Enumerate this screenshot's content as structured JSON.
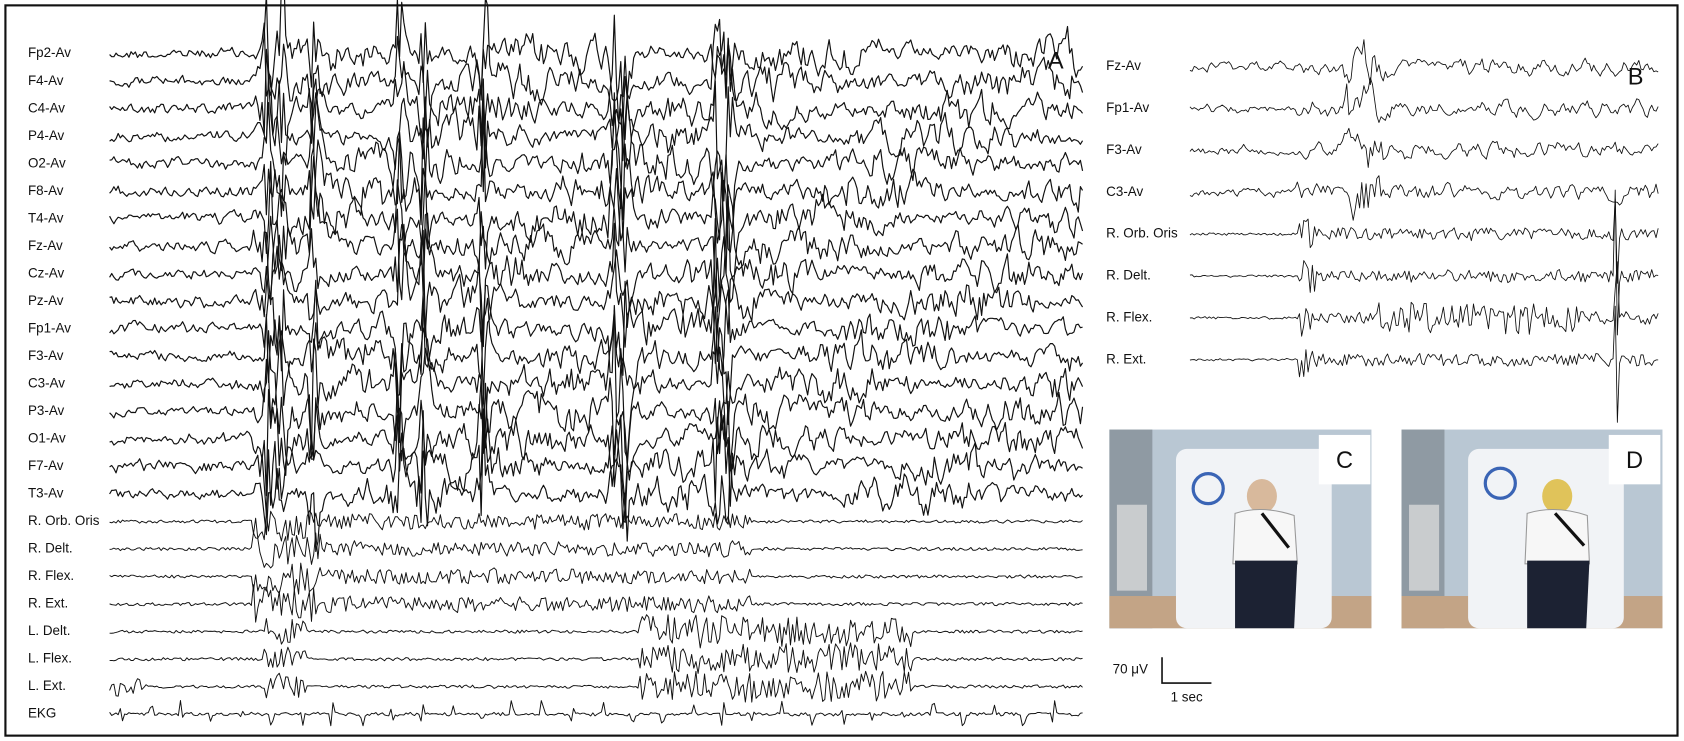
{
  "panel_a": {
    "label": "A",
    "channels": [
      "Fp2-Av",
      "F4-Av",
      "C4-Av",
      "P4-Av",
      "O2-Av",
      "F8-Av",
      "T4-Av",
      "Fz-Av",
      "Cz-Av",
      "Pz-Av",
      "Fp1-Av",
      "F3-Av",
      "C3-Av",
      "P3-Av",
      "O1-Av",
      "F7-Av",
      "T3-Av",
      "R. Orb. Oris",
      "R. Delt.",
      "R. Flex.",
      "R. Ext.",
      "L. Delt.",
      "L. Flex.",
      "L. Ext.",
      "EKG"
    ]
  },
  "panel_b": {
    "label": "B",
    "channels": [
      "Fz-Av",
      "Fp1-Av",
      "F3-Av",
      "C3-Av",
      "R. Orb. Oris",
      "R. Delt.",
      "R. Flex.",
      "R. Ext."
    ]
  },
  "panel_c": {
    "label": "C"
  },
  "panel_d": {
    "label": "D"
  },
  "scale_bar": {
    "amplitude": "70 μV",
    "time": "1 sec"
  }
}
